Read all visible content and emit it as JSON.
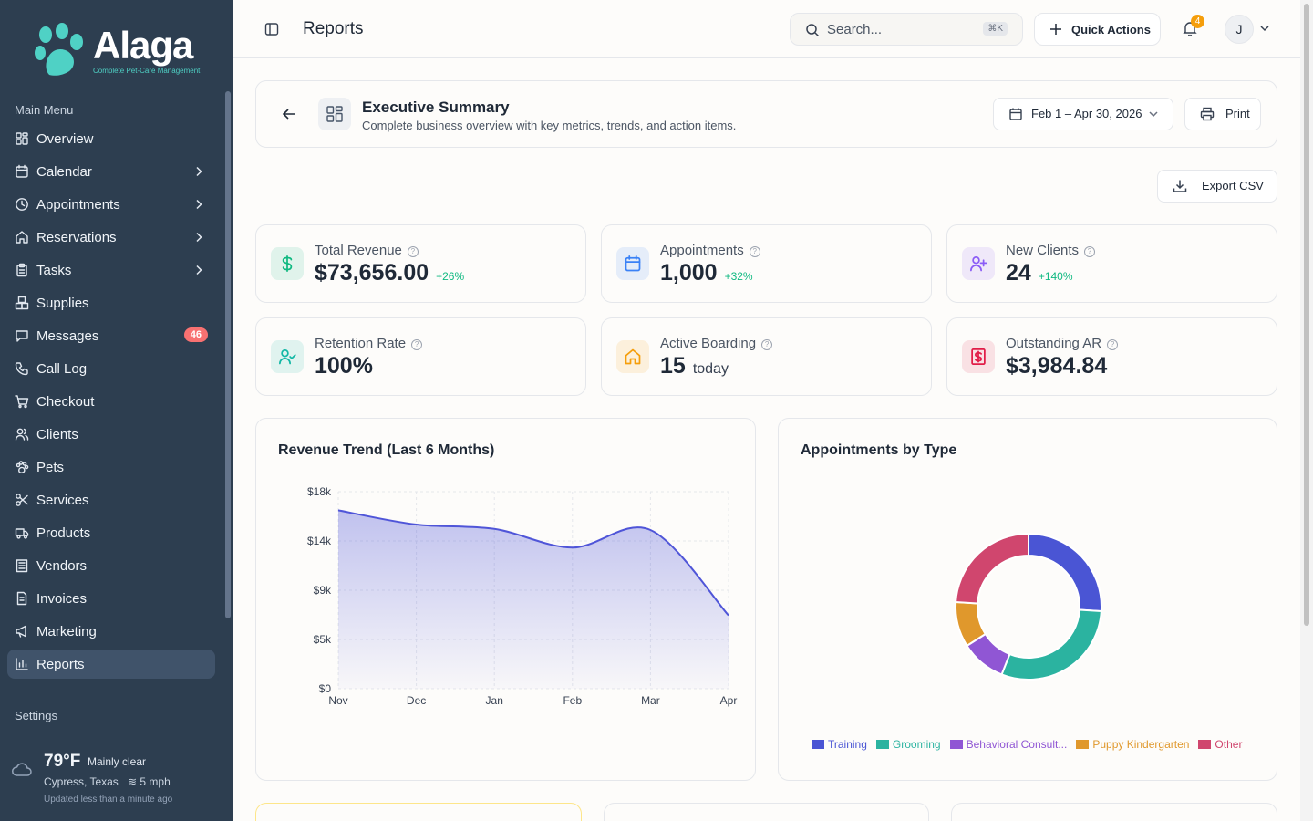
{
  "brand": {
    "name": "Alaga",
    "tagline": "Complete Pet-Care Management"
  },
  "sidebar": {
    "main_menu_label": "Main Menu",
    "settings_label": "Settings",
    "items": [
      {
        "label": "Overview",
        "icon": "grid-icon"
      },
      {
        "label": "Calendar",
        "icon": "calendar-icon",
        "has_submenu": true
      },
      {
        "label": "Appointments",
        "icon": "clock-icon",
        "has_submenu": true
      },
      {
        "label": "Reservations",
        "icon": "home-icon",
        "has_submenu": true
      },
      {
        "label": "Tasks",
        "icon": "clipboard-icon",
        "has_submenu": true
      },
      {
        "label": "Supplies",
        "icon": "boxes-icon"
      },
      {
        "label": "Messages",
        "icon": "message-icon",
        "badge": "46"
      },
      {
        "label": "Call Log",
        "icon": "phone-icon"
      },
      {
        "label": "Checkout",
        "icon": "cart-icon"
      },
      {
        "label": "Clients",
        "icon": "users-icon"
      },
      {
        "label": "Pets",
        "icon": "paw-icon"
      },
      {
        "label": "Services",
        "icon": "scissors-icon"
      },
      {
        "label": "Products",
        "icon": "truck-icon"
      },
      {
        "label": "Vendors",
        "icon": "building-icon"
      },
      {
        "label": "Invoices",
        "icon": "file-icon"
      },
      {
        "label": "Marketing",
        "icon": "megaphone-icon"
      },
      {
        "label": "Reports",
        "icon": "bar-chart-icon",
        "active": true
      }
    ]
  },
  "weather": {
    "temp": "79°F",
    "condition": "Mainly clear",
    "location": "Cypress, Texas",
    "wind": "5 mph",
    "updated": "Updated less than a minute ago"
  },
  "header": {
    "title": "Reports",
    "search_placeholder": "Search...",
    "search_shortcut": "⌘K",
    "quick_actions": "Quick Actions",
    "notification_count": "4",
    "avatar_initial": "J"
  },
  "summary": {
    "title": "Executive Summary",
    "subtitle": "Complete business overview with key metrics, trends, and action items.",
    "date_range": "Feb 1 – Apr 30, 2026",
    "print": "Print",
    "export": "Export CSV"
  },
  "kpis": [
    {
      "label": "Total Revenue",
      "value": "$73,656.00",
      "delta": "+26%",
      "icon": "dollar-icon",
      "color": "#10b981"
    },
    {
      "label": "Appointments",
      "value": "1,000",
      "delta": "+32%",
      "icon": "calendar-icon",
      "color": "#3b82f6"
    },
    {
      "label": "New Clients",
      "value": "24",
      "delta": "+140%",
      "icon": "user-plus-icon",
      "color": "#8b5cf6"
    },
    {
      "label": "Retention Rate",
      "value": "100%",
      "icon": "user-check-icon",
      "color": "#14b8a6"
    },
    {
      "label": "Active Boarding",
      "value": "15",
      "extra": "today",
      "icon": "home-icon",
      "color": "#f59e0b"
    },
    {
      "label": "Outstanding AR",
      "value": "$3,984.84",
      "icon": "receipt-icon",
      "color": "#e11d48"
    }
  ],
  "chart_data": [
    {
      "type": "area",
      "title": "Revenue Trend (Last 6 Months)",
      "categories": [
        "Nov",
        "Dec",
        "Jan",
        "Feb",
        "Mar",
        "Apr"
      ],
      "values": [
        16300,
        15000,
        14600,
        12900,
        14500,
        6700
      ],
      "yticks": [
        "$0",
        "$5k",
        "$9k",
        "$14k",
        "$18k"
      ],
      "ylim": [
        0,
        18000
      ],
      "grid": true,
      "color": "#4f55d8"
    },
    {
      "type": "pie",
      "title": "Appointments by Type",
      "donut": true,
      "categories": [
        "Training",
        "Grooming",
        "Behavioral Consult...",
        "Puppy Kindergarten",
        "Other"
      ],
      "values": [
        26,
        30,
        10,
        10,
        24
      ],
      "colors": [
        "#4a55d4",
        "#2bb3a0",
        "#9056d4",
        "#e0982c",
        "#d0466e"
      ],
      "legend_position": "bottom"
    }
  ]
}
